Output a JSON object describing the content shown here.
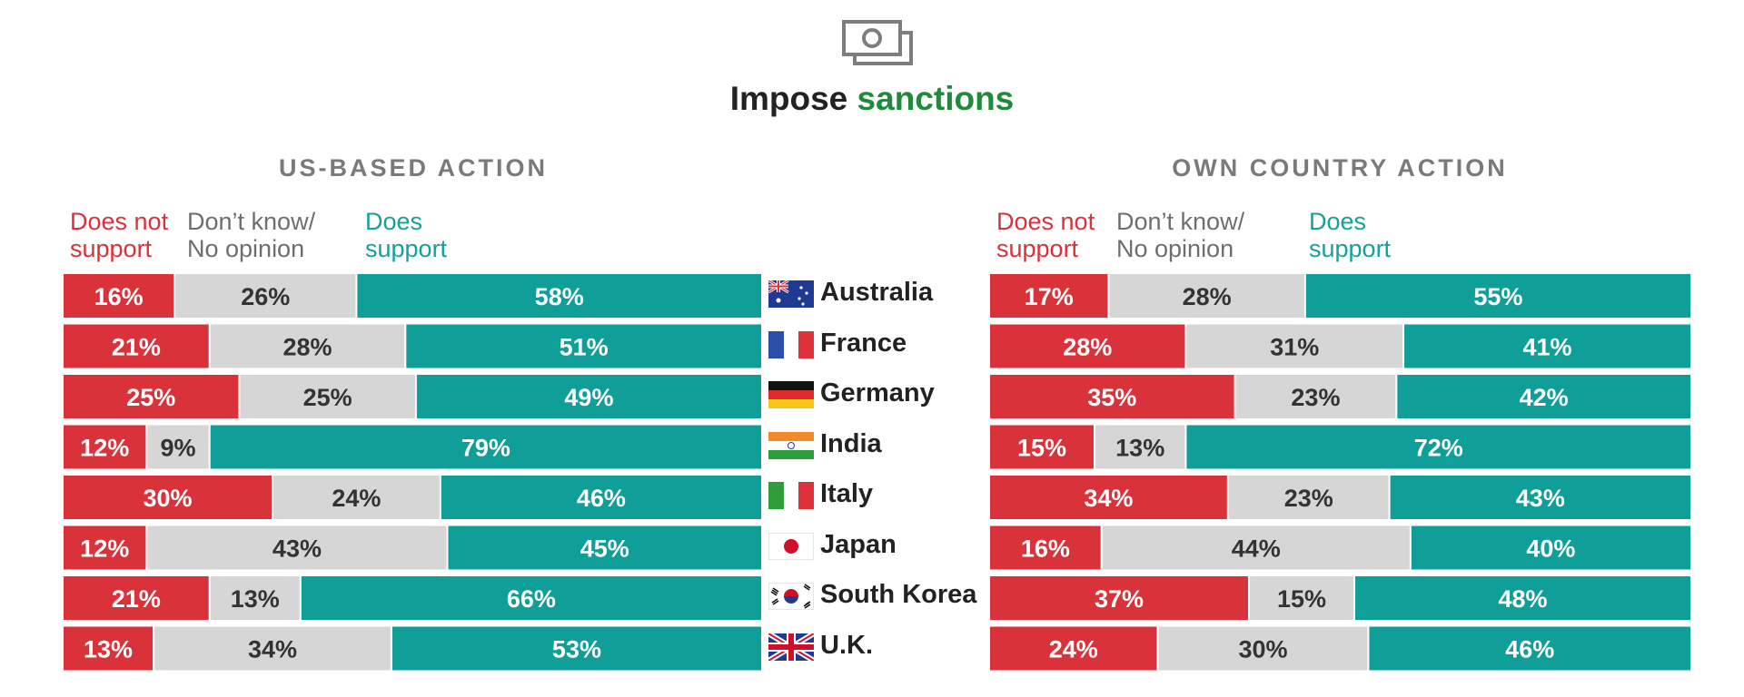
{
  "title": {
    "prefix": "Impose ",
    "accent": "sanctions"
  },
  "icon": "money-bills-icon",
  "colors": {
    "not_support": "#d9323a",
    "dont_know": "#d6d6d6",
    "support": "#0f9e98",
    "title_accent": "#1e8a3a",
    "label_on_dark": "#ffffff",
    "label_on_light": "#333333"
  },
  "legend": {
    "not_support": [
      "Does not",
      "support"
    ],
    "dont_know": [
      "Don’t know/",
      "No opinion"
    ],
    "support": [
      "Does",
      "support"
    ]
  },
  "chart_data": [
    {
      "type": "bar",
      "stacked": true,
      "orientation": "horizontal",
      "title": "US-BASED ACTION",
      "categories": [
        "Australia",
        "France",
        "Germany",
        "India",
        "Italy",
        "Japan",
        "South Korea",
        "U.K."
      ],
      "series": [
        {
          "name": "Does not support",
          "values": [
            16,
            21,
            25,
            12,
            30,
            12,
            21,
            13
          ]
        },
        {
          "name": "Don’t know/ No opinion",
          "values": [
            26,
            28,
            25,
            9,
            24,
            43,
            13,
            34
          ]
        },
        {
          "name": "Does support",
          "values": [
            58,
            51,
            49,
            79,
            46,
            45,
            66,
            53
          ]
        }
      ],
      "unit": "%"
    },
    {
      "type": "bar",
      "stacked": true,
      "orientation": "horizontal",
      "title": "OWN COUNTRY ACTION",
      "categories": [
        "Australia",
        "France",
        "Germany",
        "India",
        "Italy",
        "Japan",
        "South Korea",
        "U.K."
      ],
      "series": [
        {
          "name": "Does not support",
          "values": [
            17,
            28,
            35,
            15,
            34,
            16,
            37,
            24
          ]
        },
        {
          "name": "Don’t know/ No opinion",
          "values": [
            28,
            31,
            23,
            13,
            23,
            44,
            15,
            30
          ]
        },
        {
          "name": "Does support",
          "values": [
            55,
            41,
            42,
            72,
            43,
            40,
            48,
            46
          ]
        }
      ],
      "unit": "%"
    }
  ],
  "flags": [
    "australia-flag-icon",
    "france-flag-icon",
    "germany-flag-icon",
    "india-flag-icon",
    "italy-flag-icon",
    "japan-flag-icon",
    "south-korea-flag-icon",
    "uk-flag-icon"
  ]
}
